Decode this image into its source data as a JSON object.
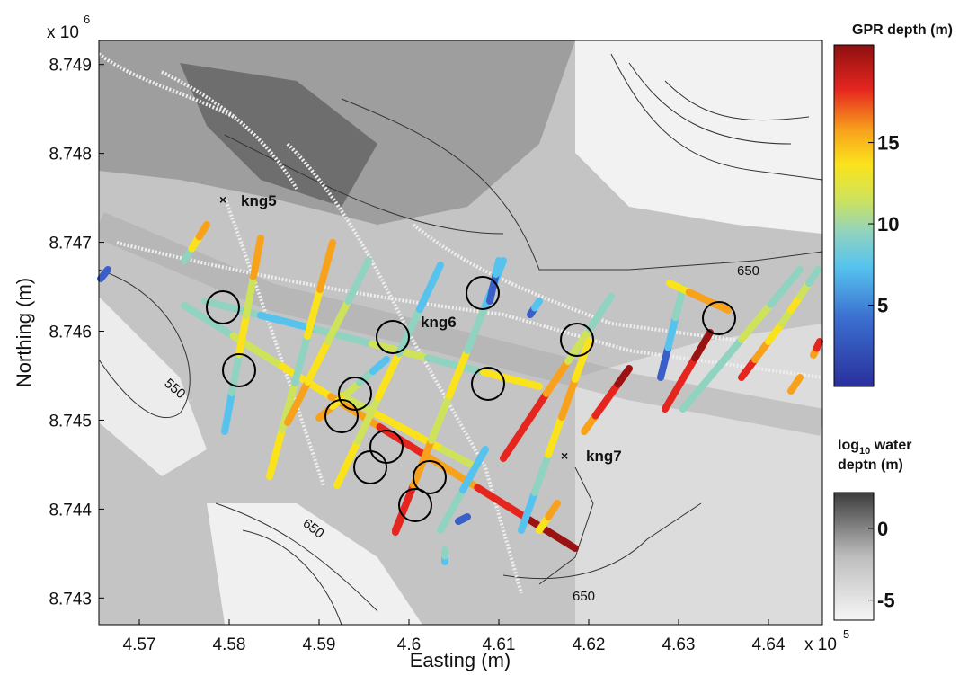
{
  "map": {
    "x_axis": {
      "label": "Easting (m)",
      "multiplier": "x 10",
      "exponent": "5",
      "lim": [
        4.5655,
        4.646
      ],
      "ticks": [
        4.57,
        4.58,
        4.59,
        4.6,
        4.61,
        4.62,
        4.63,
        4.64
      ]
    },
    "y_axis": {
      "label": "Northing (m)",
      "multiplier": "x 10",
      "exponent": "6",
      "lim": [
        8.7427,
        8.74927
      ],
      "ticks": [
        8.743,
        8.744,
        8.745,
        8.746,
        8.747,
        8.748,
        8.749
      ]
    },
    "annotations": {
      "wells": [
        "kng5",
        "kng6",
        "kng7"
      ],
      "contours": [
        "650",
        "550",
        "650",
        "650"
      ]
    },
    "gpr_colorbar": {
      "title": "GPR depth (m)",
      "lim": [
        0,
        21
      ],
      "ticks": [
        5,
        10,
        15
      ]
    },
    "water_colorbar": {
      "title_base": "log",
      "title_sub": "10",
      "title_rest": " water",
      "title_line2": "deptn (m)",
      "lim": [
        -6.4,
        2.5
      ],
      "ticks": [
        0,
        -5
      ]
    }
  }
}
